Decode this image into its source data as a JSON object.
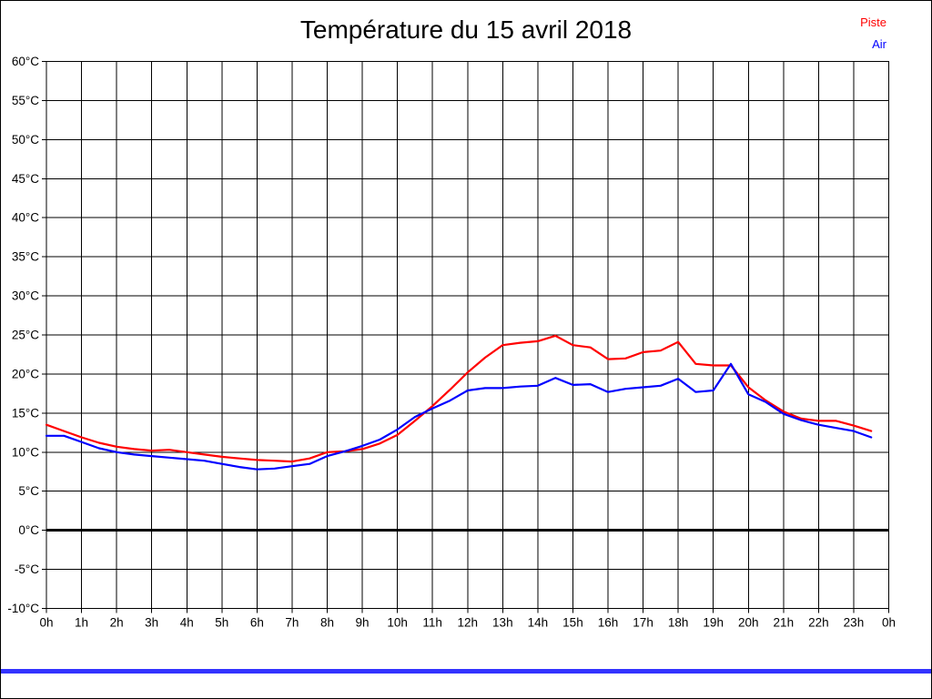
{
  "window": {
    "background": "#ffffff",
    "border_color": "#000000",
    "bottom_bar_color": "#3333ff"
  },
  "title": "Température du 15 avril 2018",
  "legend": [
    {
      "label": "Piste",
      "color": "#ff0000"
    },
    {
      "label": "Air",
      "color": "#0000ff"
    }
  ],
  "chart_data": {
    "type": "line",
    "title": "Température du 15 avril 2018",
    "xlabel": "",
    "ylabel": "",
    "grid": true,
    "grid_color": "#000000",
    "zero_line_value": 0,
    "zero_line_bold": true,
    "legend_position": "top-right",
    "xlim": [
      0,
      24
    ],
    "ylim": [
      -10,
      60
    ],
    "x_ticks": [
      0,
      1,
      2,
      3,
      4,
      5,
      6,
      7,
      8,
      9,
      10,
      11,
      12,
      13,
      14,
      15,
      16,
      17,
      18,
      19,
      20,
      21,
      22,
      23,
      24
    ],
    "x_tick_labels": [
      "0h",
      "1h",
      "2h",
      "3h",
      "4h",
      "5h",
      "6h",
      "7h",
      "8h",
      "9h",
      "10h",
      "11h",
      "12h",
      "13h",
      "14h",
      "15h",
      "16h",
      "17h",
      "18h",
      "19h",
      "20h",
      "21h",
      "22h",
      "23h",
      "0h"
    ],
    "y_ticks": [
      60,
      55,
      50,
      45,
      40,
      35,
      30,
      25,
      20,
      15,
      10,
      5,
      0,
      -5,
      -10
    ],
    "y_tick_labels": [
      "60°C",
      "55°C",
      "50°C",
      "45°C",
      "40°C",
      "35°C",
      "30°C",
      "25°C",
      "20°C",
      "15°C",
      "10°C",
      "5°C",
      "0°C",
      "-5°C",
      "-10°C"
    ],
    "x": [
      0,
      0.5,
      1,
      1.5,
      2,
      2.5,
      3,
      3.5,
      4,
      4.5,
      5,
      5.5,
      6,
      6.5,
      7,
      7.5,
      8,
      8.5,
      9,
      9.5,
      10,
      10.5,
      11,
      11.5,
      12,
      12.5,
      13,
      13.5,
      14,
      14.5,
      15,
      15.5,
      16,
      16.5,
      17,
      17.5,
      18,
      18.5,
      19,
      19.5,
      20,
      20.5,
      21,
      21.5,
      22,
      22.5,
      23,
      23.5
    ],
    "series": [
      {
        "name": "Piste",
        "color": "#ff0000",
        "values": [
          13.5,
          12.7,
          11.9,
          11.2,
          10.7,
          10.4,
          10.2,
          10.3,
          10.0,
          9.7,
          9.4,
          9.2,
          9.0,
          8.9,
          8.8,
          9.2,
          10.0,
          10.1,
          10.4,
          11.1,
          12.2,
          14.0,
          15.9,
          18.0,
          20.2,
          22.1,
          23.7,
          24.0,
          24.2,
          24.9,
          23.7,
          23.4,
          21.9,
          22.0,
          22.8,
          23.0,
          24.1,
          21.3,
          21.1,
          21.1,
          18.3,
          16.6,
          15.2,
          14.3,
          14.0,
          14.0,
          13.4,
          12.7
        ]
      },
      {
        "name": "Air",
        "color": "#0000ff",
        "values": [
          12.1,
          12.1,
          11.3,
          10.5,
          10.0,
          9.7,
          9.5,
          9.3,
          9.1,
          8.9,
          8.5,
          8.1,
          7.8,
          7.9,
          8.2,
          8.5,
          9.5,
          10.1,
          10.8,
          11.6,
          12.9,
          14.5,
          15.6,
          16.6,
          17.9,
          18.2,
          18.2,
          18.4,
          18.5,
          19.5,
          18.6,
          18.7,
          17.7,
          18.1,
          18.3,
          18.5,
          19.4,
          17.7,
          17.9,
          21.3,
          17.4,
          16.4,
          14.9,
          14.1,
          13.5,
          13.1,
          12.7,
          11.9
        ]
      }
    ]
  }
}
